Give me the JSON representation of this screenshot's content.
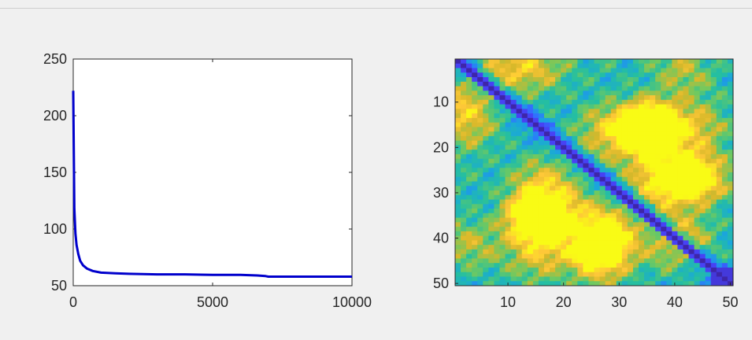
{
  "chart_data": [
    {
      "type": "line",
      "title": "",
      "xlabel": "",
      "ylabel": "",
      "xlim": [
        0,
        10000
      ],
      "ylim": [
        50,
        250
      ],
      "xticks": [
        0,
        5000,
        10000
      ],
      "yticks": [
        50,
        100,
        150,
        200,
        250
      ],
      "grid": false,
      "line_color": "#0000cc",
      "series": [
        {
          "x": [
            0,
            20,
            40,
            80,
            120,
            180,
            250,
            350,
            500,
            700,
            1000,
            1500,
            2000,
            3000,
            4000,
            5000,
            6000,
            6600,
            6900,
            7000,
            8000,
            9000,
            10000
          ],
          "y": [
            222,
            170,
            118,
            96,
            86,
            78,
            72,
            68,
            65,
            63,
            61.5,
            61,
            60.5,
            60,
            60,
            59.5,
            59.5,
            59,
            58.5,
            58,
            58,
            58,
            58
          ]
        }
      ]
    },
    {
      "type": "heatmap",
      "title": "",
      "xlabel": "",
      "ylabel": "",
      "size": 50,
      "xlim": [
        0.5,
        50.5
      ],
      "ylim": [
        0.5,
        50.5
      ],
      "xticks": [
        10,
        20,
        30,
        40,
        50
      ],
      "yticks": [
        10,
        20,
        30,
        40,
        50
      ],
      "colormap": "parula",
      "colormap_stops": [
        "#3e26a8",
        "#4743f8",
        "#2e76ff",
        "#1aa7db",
        "#25bfa0",
        "#70c960",
        "#d7b82a",
        "#fec838",
        "#f9fb15"
      ],
      "diagonal_value": 0,
      "blocks": [
        {
          "r": 1,
          "c": 10,
          "v": 0.75
        },
        {
          "r": 1,
          "c": 27,
          "v": 0.5
        },
        {
          "r": 1,
          "c": 40,
          "v": 0.62
        },
        {
          "r": 16,
          "c": 3,
          "v": 0.72
        },
        {
          "r": 16,
          "c": 35,
          "v": 1.0
        },
        {
          "r": 16,
          "c": 44,
          "v": 0.7
        },
        {
          "r": 26,
          "c": 42,
          "v": 0.85
        },
        {
          "r": 27,
          "c": 15,
          "v": 0.7
        },
        {
          "r": 36,
          "c": 15,
          "v": 1.0
        },
        {
          "r": 36,
          "c": 27,
          "v": 0.75
        },
        {
          "r": 42,
          "c": 27,
          "v": 0.9
        },
        {
          "r": 43,
          "c": 5,
          "v": 0.6
        },
        {
          "r": 42,
          "c": 40,
          "v": 0.78
        },
        {
          "r": 48,
          "c": 27,
          "v": 0.6
        },
        {
          "r": 47,
          "c": 14,
          "v": 0.5
        },
        {
          "r": 7,
          "c": 7,
          "v": 0.55
        },
        {
          "r": 22,
          "c": 22,
          "v": 0.5
        },
        {
          "r": 35,
          "c": 37,
          "v": 0.55
        },
        {
          "r": 20,
          "c": 30,
          "v": 0.6
        }
      ]
    }
  ]
}
